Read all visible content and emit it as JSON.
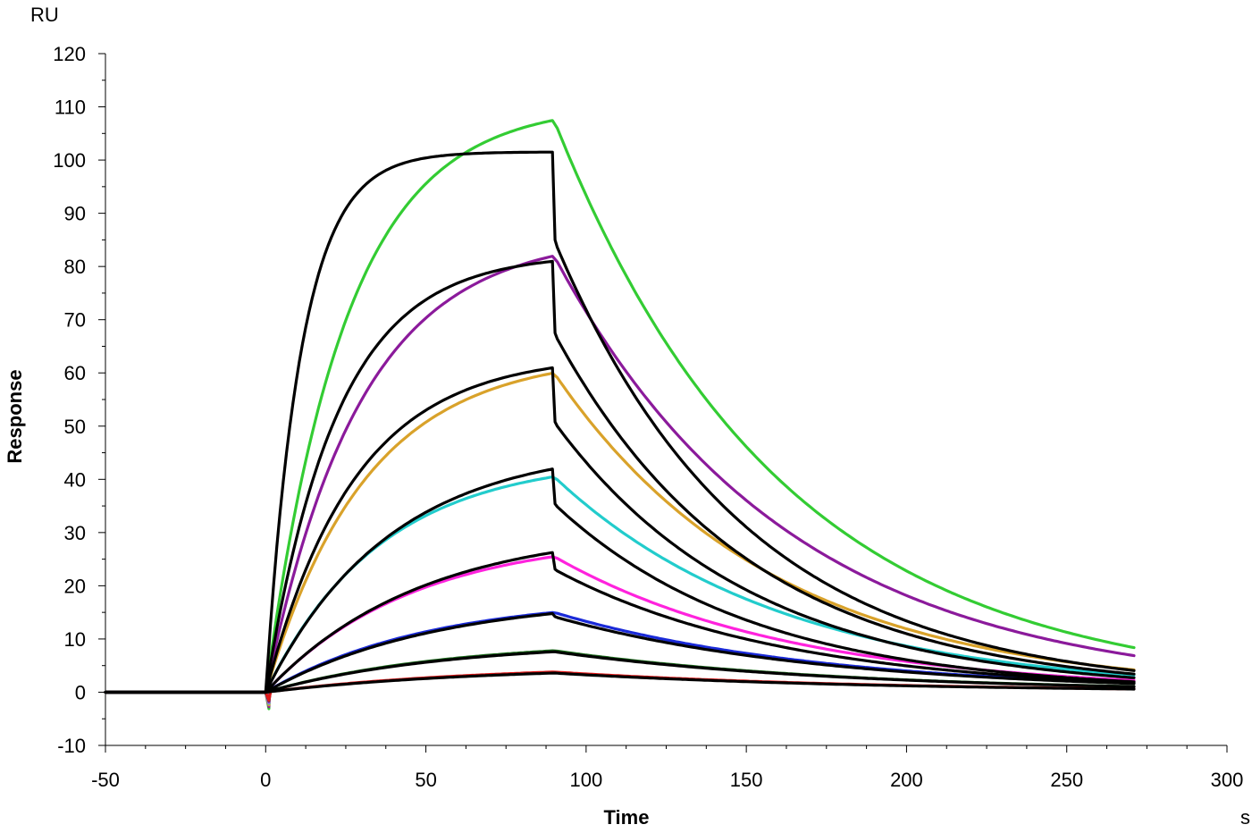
{
  "chart_data": {
    "type": "line",
    "title": "",
    "xlabel": "Time",
    "ylabel": "Response",
    "x_unit": "s",
    "y_unit": "RU",
    "xlim": [
      -50,
      300
    ],
    "ylim": [
      -10,
      120
    ],
    "x_ticks": [
      -50,
      0,
      50,
      100,
      150,
      200,
      250,
      300
    ],
    "y_ticks": [
      -10,
      0,
      10,
      20,
      30,
      40,
      50,
      60,
      70,
      80,
      90,
      100,
      110,
      120
    ],
    "grid": false,
    "legend": "none",
    "injection_start": 0,
    "injection_end": 90,
    "run_end": 271,
    "series": [
      {
        "color": "#33cc33",
        "plateau": 107.5,
        "ka": 0.04,
        "kd": 0.0141
      },
      {
        "color": "#8b1a9b",
        "plateau": 82.0,
        "ka": 0.034,
        "kd": 0.0137
      },
      {
        "color": "#d9a22a",
        "plateau": 60.0,
        "ka": 0.032,
        "kd": 0.0147
      },
      {
        "color": "#22cccc",
        "plateau": 40.5,
        "ka": 0.028,
        "kd": 0.014
      },
      {
        "color": "#ff22dd",
        "plateau": 25.5,
        "ka": 0.022,
        "kd": 0.0135
      },
      {
        "color": "#1a2ad8",
        "plateau": 15.0,
        "ka": 0.02,
        "kd": 0.012
      },
      {
        "color": "#1a6a1a",
        "plateau": 7.8,
        "ka": 0.018,
        "kd": 0.011
      },
      {
        "color": "#e01a1a",
        "plateau": 3.8,
        "ka": 0.015,
        "kd": 0.01
      }
    ],
    "fits": [
      {
        "color": "#000000",
        "plateau": 101.5,
        "ka": 0.09,
        "drop": 16.5,
        "kd": 0.0168
      },
      {
        "color": "#000000",
        "plateau": 81.0,
        "ka": 0.045,
        "drop": 13.5,
        "kd": 0.0165
      },
      {
        "color": "#000000",
        "plateau": 61.0,
        "ka": 0.036,
        "drop": 10.2,
        "kd": 0.0162
      },
      {
        "color": "#000000",
        "plateau": 42.0,
        "ka": 0.026,
        "drop": 6.6,
        "kd": 0.016
      },
      {
        "color": "#000000",
        "plateau": 26.3,
        "ka": 0.021,
        "drop": 3.2,
        "kd": 0.014
      },
      {
        "color": "#000000",
        "plateau": 14.8,
        "ka": 0.019,
        "drop": 0.6,
        "kd": 0.012
      },
      {
        "color": "#000000",
        "plateau": 7.6,
        "ka": 0.018,
        "drop": 0.0,
        "kd": 0.011
      },
      {
        "color": "#000000",
        "plateau": 3.6,
        "ka": 0.015,
        "drop": 0.0,
        "kd": 0.01
      }
    ]
  }
}
